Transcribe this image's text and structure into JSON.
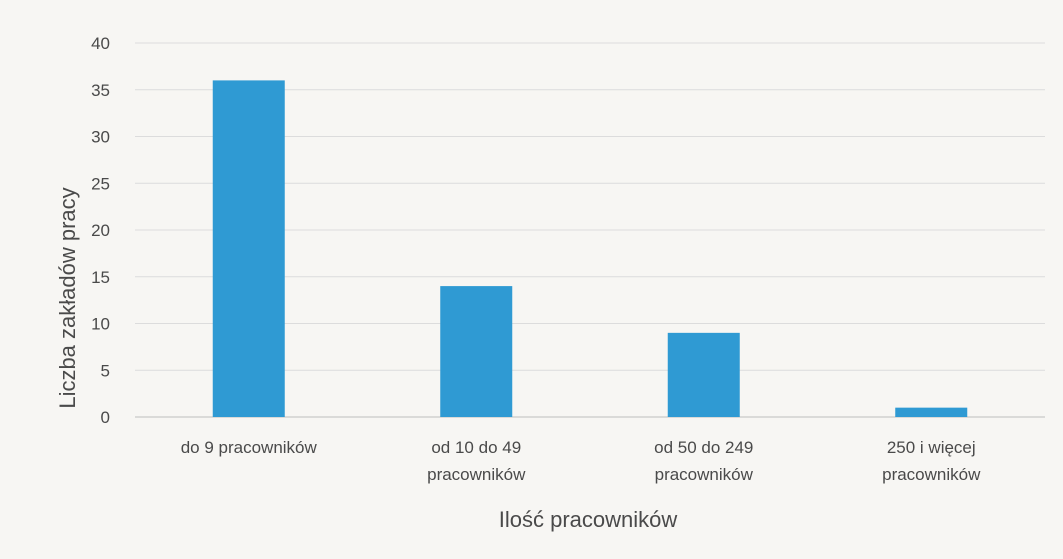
{
  "chart_data": {
    "type": "bar",
    "title": "",
    "xlabel": "Ilość pracowników",
    "ylabel": "Liczba zakładów pracy",
    "categories": [
      [
        "do 9 pracowników"
      ],
      [
        "od 10 do 49",
        "pracowników"
      ],
      [
        "od 50 do 249",
        "pracowników"
      ],
      [
        "250 i więcej",
        "pracowników"
      ]
    ],
    "values": [
      36,
      14,
      9,
      1
    ],
    "ylim": [
      0,
      40
    ],
    "yticks": [
      0,
      5,
      10,
      15,
      20,
      25,
      30,
      35,
      40
    ],
    "grid": true,
    "bar_color": "#2f9ad3"
  }
}
